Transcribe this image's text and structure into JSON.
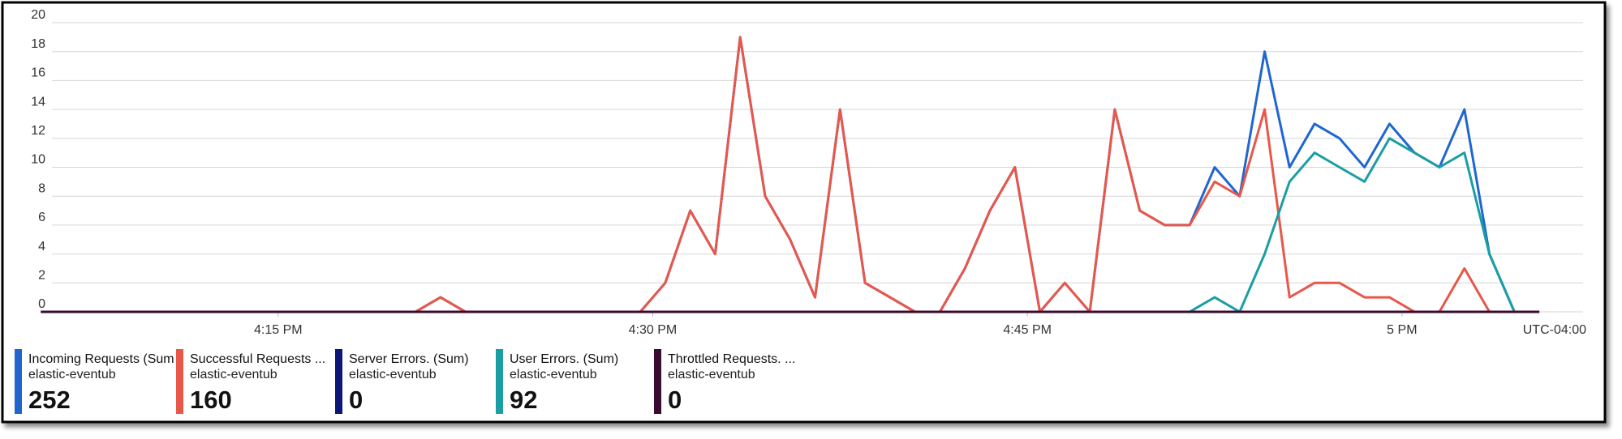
{
  "chart_data": {
    "type": "line",
    "x": [
      965.5,
      966.5,
      967.5,
      968.5,
      969.5,
      970.5,
      971.5,
      972.5,
      973.5,
      974.5,
      975.5,
      976.5,
      977.5,
      978.5,
      979.5,
      980.5,
      981.5,
      982.5,
      983.5,
      984.5,
      985.5,
      986.5,
      987.5,
      988.5,
      989.5,
      990.5,
      991.5,
      992.5,
      993.5,
      994.5,
      995.5,
      996.5,
      997.5,
      998.5,
      999.5,
      1000.5,
      1001.5,
      1002.5,
      1003.5,
      1004.5,
      1005.5,
      1006.5,
      1007.5,
      1008.5,
      1009.5,
      1010.5,
      1011.5,
      1012.5,
      1013.5,
      1014.5,
      1015.5,
      1016.5,
      1017.5,
      1018.5,
      1019.5,
      1020.5,
      1021.5,
      1022.5,
      1023.5,
      1024.5,
      1025.5
    ],
    "series": [
      {
        "name": "Incoming Requests (Sum",
        "resource": "elastic-eventub",
        "total": 252,
        "color": "#1f66d1",
        "values": [
          0,
          0,
          0,
          0,
          0,
          0,
          0,
          0,
          0,
          0,
          0,
          0,
          0,
          0,
          0,
          0,
          1,
          0,
          0,
          0,
          0,
          0,
          0,
          0,
          0,
          2,
          7,
          4,
          19,
          8,
          5,
          1,
          14,
          2,
          1,
          0,
          0,
          3,
          7,
          10,
          0,
          2,
          0,
          14,
          7,
          6,
          6,
          10,
          8,
          18,
          10,
          13,
          12,
          10,
          13,
          11,
          10,
          14,
          4,
          0,
          null
        ]
      },
      {
        "name": "Successful Requests ...",
        "resource": "elastic-eventub",
        "total": 160,
        "color": "#e8574a",
        "values": [
          0,
          0,
          0,
          0,
          0,
          0,
          0,
          0,
          0,
          0,
          0,
          0,
          0,
          0,
          0,
          0,
          1,
          0,
          0,
          0,
          0,
          0,
          0,
          0,
          0,
          2,
          7,
          4,
          19,
          8,
          5,
          1,
          14,
          2,
          1,
          0,
          0,
          3,
          7,
          10,
          0,
          2,
          0,
          14,
          7,
          6,
          6,
          9,
          8,
          14,
          1,
          2,
          2,
          1,
          1,
          0,
          0,
          3,
          0,
          null,
          null
        ]
      },
      {
        "name": "Server Errors. (Sum)",
        "resource": "elastic-eventub",
        "total": 0,
        "color": "#0b1677",
        "values": [
          0,
          0,
          0,
          0,
          0,
          0,
          0,
          0,
          0,
          0,
          0,
          0,
          0,
          0,
          0,
          0,
          0,
          0,
          0,
          0,
          0,
          0,
          0,
          0,
          0,
          0,
          0,
          0,
          0,
          0,
          0,
          0,
          0,
          0,
          0,
          0,
          0,
          0,
          0,
          0,
          0,
          0,
          0,
          0,
          0,
          0,
          0,
          0,
          0,
          0,
          0,
          0,
          0,
          0,
          0,
          0,
          0,
          0,
          0,
          0,
          0
        ]
      },
      {
        "name": "User Errors. (Sum)",
        "resource": "elastic-eventub",
        "total": 92,
        "color": "#1a9ea3",
        "values": [
          0,
          0,
          0,
          0,
          0,
          0,
          0,
          0,
          0,
          0,
          0,
          0,
          0,
          0,
          0,
          0,
          0,
          0,
          0,
          0,
          0,
          0,
          0,
          0,
          0,
          0,
          0,
          0,
          0,
          0,
          0,
          0,
          0,
          0,
          0,
          0,
          0,
          0,
          0,
          0,
          0,
          0,
          0,
          0,
          0,
          0,
          0,
          1,
          0,
          4,
          9,
          11,
          10,
          9,
          12,
          11,
          10,
          11,
          4,
          0,
          null
        ]
      },
      {
        "name": "Throttled Requests. ...",
        "resource": "elastic-eventub",
        "total": 0,
        "color": "#3b0a30",
        "values": [
          0,
          0,
          0,
          0,
          0,
          0,
          0,
          0,
          0,
          0,
          0,
          0,
          0,
          0,
          0,
          0,
          0,
          0,
          0,
          0,
          0,
          0,
          0,
          0,
          0,
          0,
          0,
          0,
          0,
          0,
          0,
          0,
          0,
          0,
          0,
          0,
          0,
          0,
          0,
          0,
          0,
          0,
          0,
          0,
          0,
          0,
          0,
          0,
          0,
          0,
          0,
          0,
          0,
          0,
          0,
          0,
          0,
          0,
          0,
          0,
          0
        ]
      }
    ],
    "xlim": [
      964.35,
      1027.25
    ],
    "xticks": [
      {
        "value": 975,
        "label": "4:15 PM"
      },
      {
        "value": 990,
        "label": "4:30 PM"
      },
      {
        "value": 1005,
        "label": "4:45 PM"
      },
      {
        "value": 1020,
        "label": "5 PM"
      }
    ],
    "timezone": "UTC-04:00",
    "ylim": [
      0,
      20
    ],
    "yticks": [
      0,
      2,
      4,
      6,
      8,
      10,
      12,
      14,
      16,
      18,
      20
    ],
    "grid": true
  }
}
